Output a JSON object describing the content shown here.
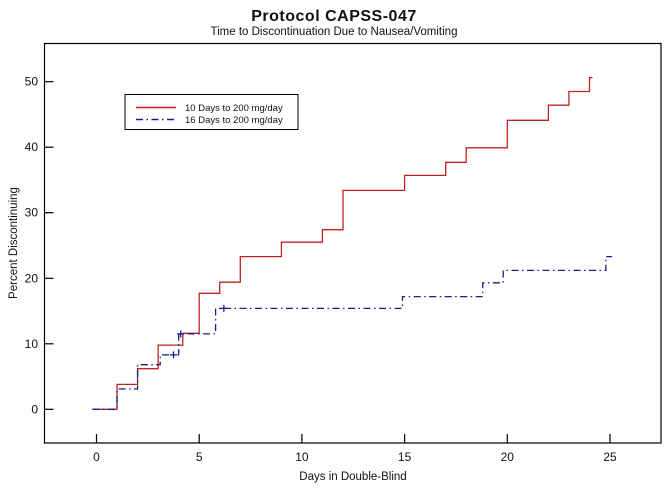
{
  "page": {
    "background": "#ffffff"
  },
  "chart_data": {
    "type": "line",
    "subtype": "kaplan-meier-step",
    "title": "Protocol CAPSS-047",
    "subtitle": "Time to Discontinuation Due to Nausea/Vomiting",
    "xlabel": "Days in Double-Blind",
    "ylabel": "Percent Discontinuing",
    "x_ticks": [
      "0",
      "5",
      "10",
      "15",
      "20",
      "25"
    ],
    "y_ticks": [
      "0",
      "10",
      "20",
      "30",
      "40",
      "50"
    ],
    "xlim": [
      -2.5,
      27.5
    ],
    "ylim": [
      -5,
      56
    ],
    "grid": false,
    "frame": true,
    "legend_position": "upper-left-inside",
    "series": [
      {
        "name": "10 Days to 200 mg/day",
        "color": "#bf2424",
        "line_style": "solid",
        "points": [
          [
            -0.2,
            0
          ],
          [
            1,
            0
          ],
          [
            1,
            3.8
          ],
          [
            2,
            3.8
          ],
          [
            2,
            6.2
          ],
          [
            3,
            6.2
          ],
          [
            3,
            9.8
          ],
          [
            4.2,
            9.8
          ],
          [
            4.2,
            11.6
          ],
          [
            5,
            11.6
          ],
          [
            5,
            17.7
          ],
          [
            6,
            17.7
          ],
          [
            6,
            19.4
          ],
          [
            7,
            19.4
          ],
          [
            7,
            23.3
          ],
          [
            9,
            23.3
          ],
          [
            9,
            25.5
          ],
          [
            11,
            25.5
          ],
          [
            11,
            27.4
          ],
          [
            12,
            27.4
          ],
          [
            12,
            33.4
          ],
          [
            15,
            33.4
          ],
          [
            15,
            35.7
          ],
          [
            17,
            35.7
          ],
          [
            17,
            37.7
          ],
          [
            18,
            37.7
          ],
          [
            18,
            39.9
          ],
          [
            20,
            39.9
          ],
          [
            20,
            44.1
          ],
          [
            22,
            44.1
          ],
          [
            22,
            46.4
          ],
          [
            23,
            46.4
          ],
          [
            23,
            48.5
          ],
          [
            24,
            48.5
          ],
          [
            24,
            50.6
          ],
          [
            24.15,
            50.6
          ]
        ],
        "censor_marks": []
      },
      {
        "name": "16 Days to 200 mg/day",
        "color": "#1c1c8c",
        "line_style": "dash-dot",
        "points": [
          [
            -0.2,
            0
          ],
          [
            1,
            0
          ],
          [
            1,
            3.1
          ],
          [
            2,
            3.1
          ],
          [
            2,
            6.8
          ],
          [
            3.1,
            6.8
          ],
          [
            3.1,
            8.3
          ],
          [
            4,
            8.3
          ],
          [
            4,
            11.5
          ],
          [
            5.8,
            11.5
          ],
          [
            5.8,
            15.4
          ],
          [
            14.9,
            15.4
          ],
          [
            14.9,
            17.2
          ],
          [
            18.8,
            17.2
          ],
          [
            18.8,
            19.3
          ],
          [
            19.8,
            19.3
          ],
          [
            19.8,
            21.2
          ],
          [
            24.8,
            21.2
          ],
          [
            24.8,
            23.3
          ],
          [
            25.1,
            23.3
          ]
        ],
        "censor_marks": [
          [
            3.75,
            8.3
          ],
          [
            4.1,
            11.5
          ],
          [
            6.2,
            15.4
          ]
        ]
      }
    ]
  }
}
